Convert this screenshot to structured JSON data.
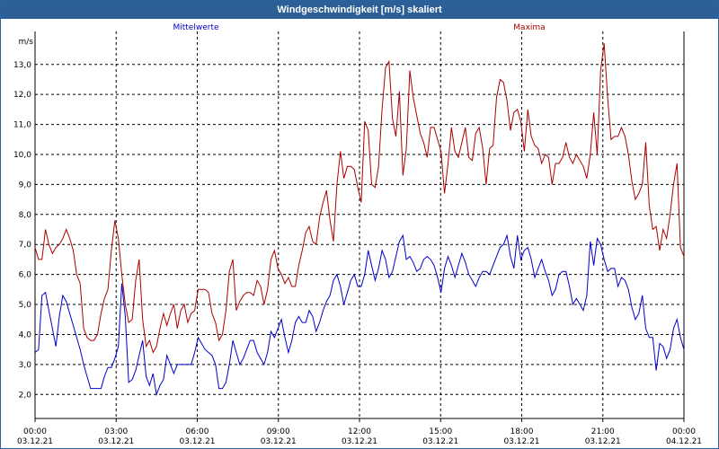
{
  "window": {
    "title": "Windgeschwindigkeit [m/s] skaliert"
  },
  "colors": {
    "titlebar": "#2c5f95",
    "mittel": "#0000cc",
    "maxima": "#aa0000",
    "grid": "#000000"
  },
  "chart_data": {
    "type": "line",
    "title": "Windgeschwindigkeit [m/s] skaliert",
    "ylabel": "m/s",
    "ylim": [
      1.2,
      14.1
    ],
    "yticks": [
      "2,0",
      "3,0",
      "4,0",
      "5,0",
      "6,0",
      "7,0",
      "8,0",
      "9,0",
      "10,0",
      "11,0",
      "12,0",
      "13,0"
    ],
    "ytick_values": [
      2,
      3,
      4,
      5,
      6,
      7,
      8,
      9,
      10,
      11,
      12,
      13
    ],
    "xlim": [
      0,
      24
    ],
    "xticks": [
      {
        "time": "00:00",
        "date": "03.12.21",
        "h": 0
      },
      {
        "time": "03:00",
        "date": "03.12.21",
        "h": 3
      },
      {
        "time": "06:00",
        "date": "03.12.21",
        "h": 6
      },
      {
        "time": "09:00",
        "date": "03.12.21",
        "h": 9
      },
      {
        "time": "12:00",
        "date": "03.12.21",
        "h": 12
      },
      {
        "time": "15:00",
        "date": "03.12.21",
        "h": 15
      },
      {
        "time": "18:00",
        "date": "03.12.21",
        "h": 18
      },
      {
        "time": "21:00",
        "date": "03.12.21",
        "h": 21
      },
      {
        "time": "00:00",
        "date": "04.12.21",
        "h": 24
      }
    ],
    "grid": true,
    "legend": "top",
    "series": [
      {
        "name": "Mittelwerte",
        "color": "#0000cc",
        "values": [
          3.4,
          3.5,
          5.3,
          5.4,
          4.8,
          4.2,
          3.6,
          4.6,
          5.3,
          5.1,
          4.7,
          4.3,
          3.9,
          3.5,
          3.0,
          2.6,
          2.2,
          2.2,
          2.2,
          2.2,
          2.6,
          2.9,
          2.9,
          3.2,
          3.6,
          5.7,
          4.6,
          2.4,
          2.5,
          2.8,
          3.3,
          3.8,
          2.6,
          2.3,
          2.7,
          2.0,
          2.3,
          2.5,
          3.3,
          3.0,
          2.7,
          3.0,
          3.0,
          3.0,
          3.0,
          3.0,
          3.4,
          3.9,
          3.7,
          3.5,
          3.4,
          3.3,
          3.0,
          2.2,
          2.2,
          2.4,
          3.0,
          3.8,
          3.4,
          3.0,
          3.2,
          3.5,
          3.8,
          3.8,
          3.4,
          3.2,
          3.0,
          3.4,
          4.1,
          3.9,
          4.2,
          4.5,
          3.9,
          3.4,
          3.8,
          4.4,
          4.6,
          4.4,
          4.4,
          4.8,
          4.6,
          4.1,
          4.4,
          4.8,
          5.1,
          5.3,
          5.8,
          6.0,
          5.6,
          5.0,
          5.4,
          5.8,
          6.0,
          5.6,
          5.6,
          6.0,
          6.8,
          6.3,
          5.8,
          6.2,
          6.8,
          6.5,
          5.9,
          6.1,
          6.6,
          7.1,
          7.3,
          6.5,
          6.6,
          6.4,
          6.1,
          6.2,
          6.5,
          6.6,
          6.5,
          6.3,
          5.9,
          5.4,
          6.2,
          6.6,
          6.3,
          5.9,
          6.3,
          6.7,
          6.4,
          6.0,
          5.8,
          5.6,
          5.9,
          6.1,
          6.1,
          6.0,
          6.3,
          6.6,
          6.9,
          7.0,
          7.3,
          6.6,
          6.2,
          7.3,
          6.5,
          6.8,
          6.9,
          6.5,
          5.9,
          6.2,
          6.5,
          6.1,
          5.8,
          5.3,
          5.5,
          6.0,
          6.1,
          6.1,
          5.6,
          5.0,
          5.2,
          5.0,
          4.8,
          5.3,
          7.1,
          6.3,
          7.2,
          7.0,
          6.5,
          6.1,
          6.2,
          6.2,
          5.6,
          5.9,
          5.8,
          5.5,
          4.9,
          4.5,
          4.7,
          5.3,
          4.2,
          3.9,
          3.9,
          2.8,
          3.7,
          3.6,
          3.2,
          3.5,
          4.2,
          4.5,
          3.9,
          3.5
        ]
      },
      {
        "name": "Maxima",
        "color": "#aa0000",
        "values": [
          6.9,
          6.5,
          6.5,
          7.5,
          7.0,
          6.7,
          6.9,
          7.0,
          7.2,
          7.5,
          7.2,
          6.8,
          6.0,
          5.7,
          4.2,
          3.9,
          3.8,
          3.8,
          4.0,
          4.7,
          5.2,
          5.5,
          6.8,
          7.8,
          7.2,
          6.0,
          5.0,
          4.4,
          4.5,
          5.8,
          6.5,
          4.5,
          3.6,
          3.8,
          3.4,
          3.6,
          4.2,
          4.7,
          4.3,
          4.7,
          5.0,
          4.2,
          4.8,
          5.0,
          4.4,
          4.7,
          4.8,
          5.5,
          5.5,
          5.5,
          5.4,
          4.7,
          4.4,
          3.8,
          4.0,
          4.8,
          6.1,
          6.5,
          4.8,
          5.1,
          5.3,
          5.4,
          5.4,
          5.3,
          5.8,
          5.6,
          5.0,
          5.5,
          6.5,
          6.8,
          6.2,
          6.0,
          5.7,
          5.9,
          5.6,
          5.6,
          6.3,
          6.8,
          7.4,
          7.6,
          7.1,
          7.0,
          7.9,
          8.4,
          8.8,
          7.8,
          7.1,
          9.0,
          10.1,
          9.2,
          9.6,
          9.6,
          9.5,
          8.9,
          8.4,
          11.1,
          10.8,
          9.0,
          8.9,
          9.6,
          11.5,
          12.9,
          13.1,
          11.2,
          10.6,
          12.1,
          9.3,
          10.2,
          12.8,
          11.9,
          11.3,
          10.7,
          10.4,
          9.9,
          10.9,
          10.9,
          10.5,
          10.1,
          8.7,
          9.7,
          10.9,
          10.1,
          9.9,
          10.4,
          10.9,
          9.9,
          9.8,
          10.7,
          10.9,
          10.2,
          9.0,
          10.2,
          10.3,
          11.9,
          12.5,
          12.4,
          11.8,
          10.8,
          11.4,
          11.5,
          11.1,
          10.1,
          11.5,
          10.6,
          10.3,
          10.2,
          9.7,
          10.0,
          9.9,
          9.0,
          9.7,
          9.7,
          9.9,
          10.4,
          9.9,
          9.7,
          10.0,
          9.8,
          9.6,
          9.2,
          10.0,
          11.4,
          10.0,
          12.8,
          13.7,
          11.9,
          10.5,
          10.6,
          10.6,
          10.9,
          10.6,
          10.0,
          9.1,
          8.5,
          8.7,
          9.0,
          10.4,
          8.3,
          7.5,
          7.6,
          6.8,
          7.5,
          7.2,
          8.0,
          9.0,
          9.7,
          6.9,
          6.6
        ]
      }
    ]
  }
}
